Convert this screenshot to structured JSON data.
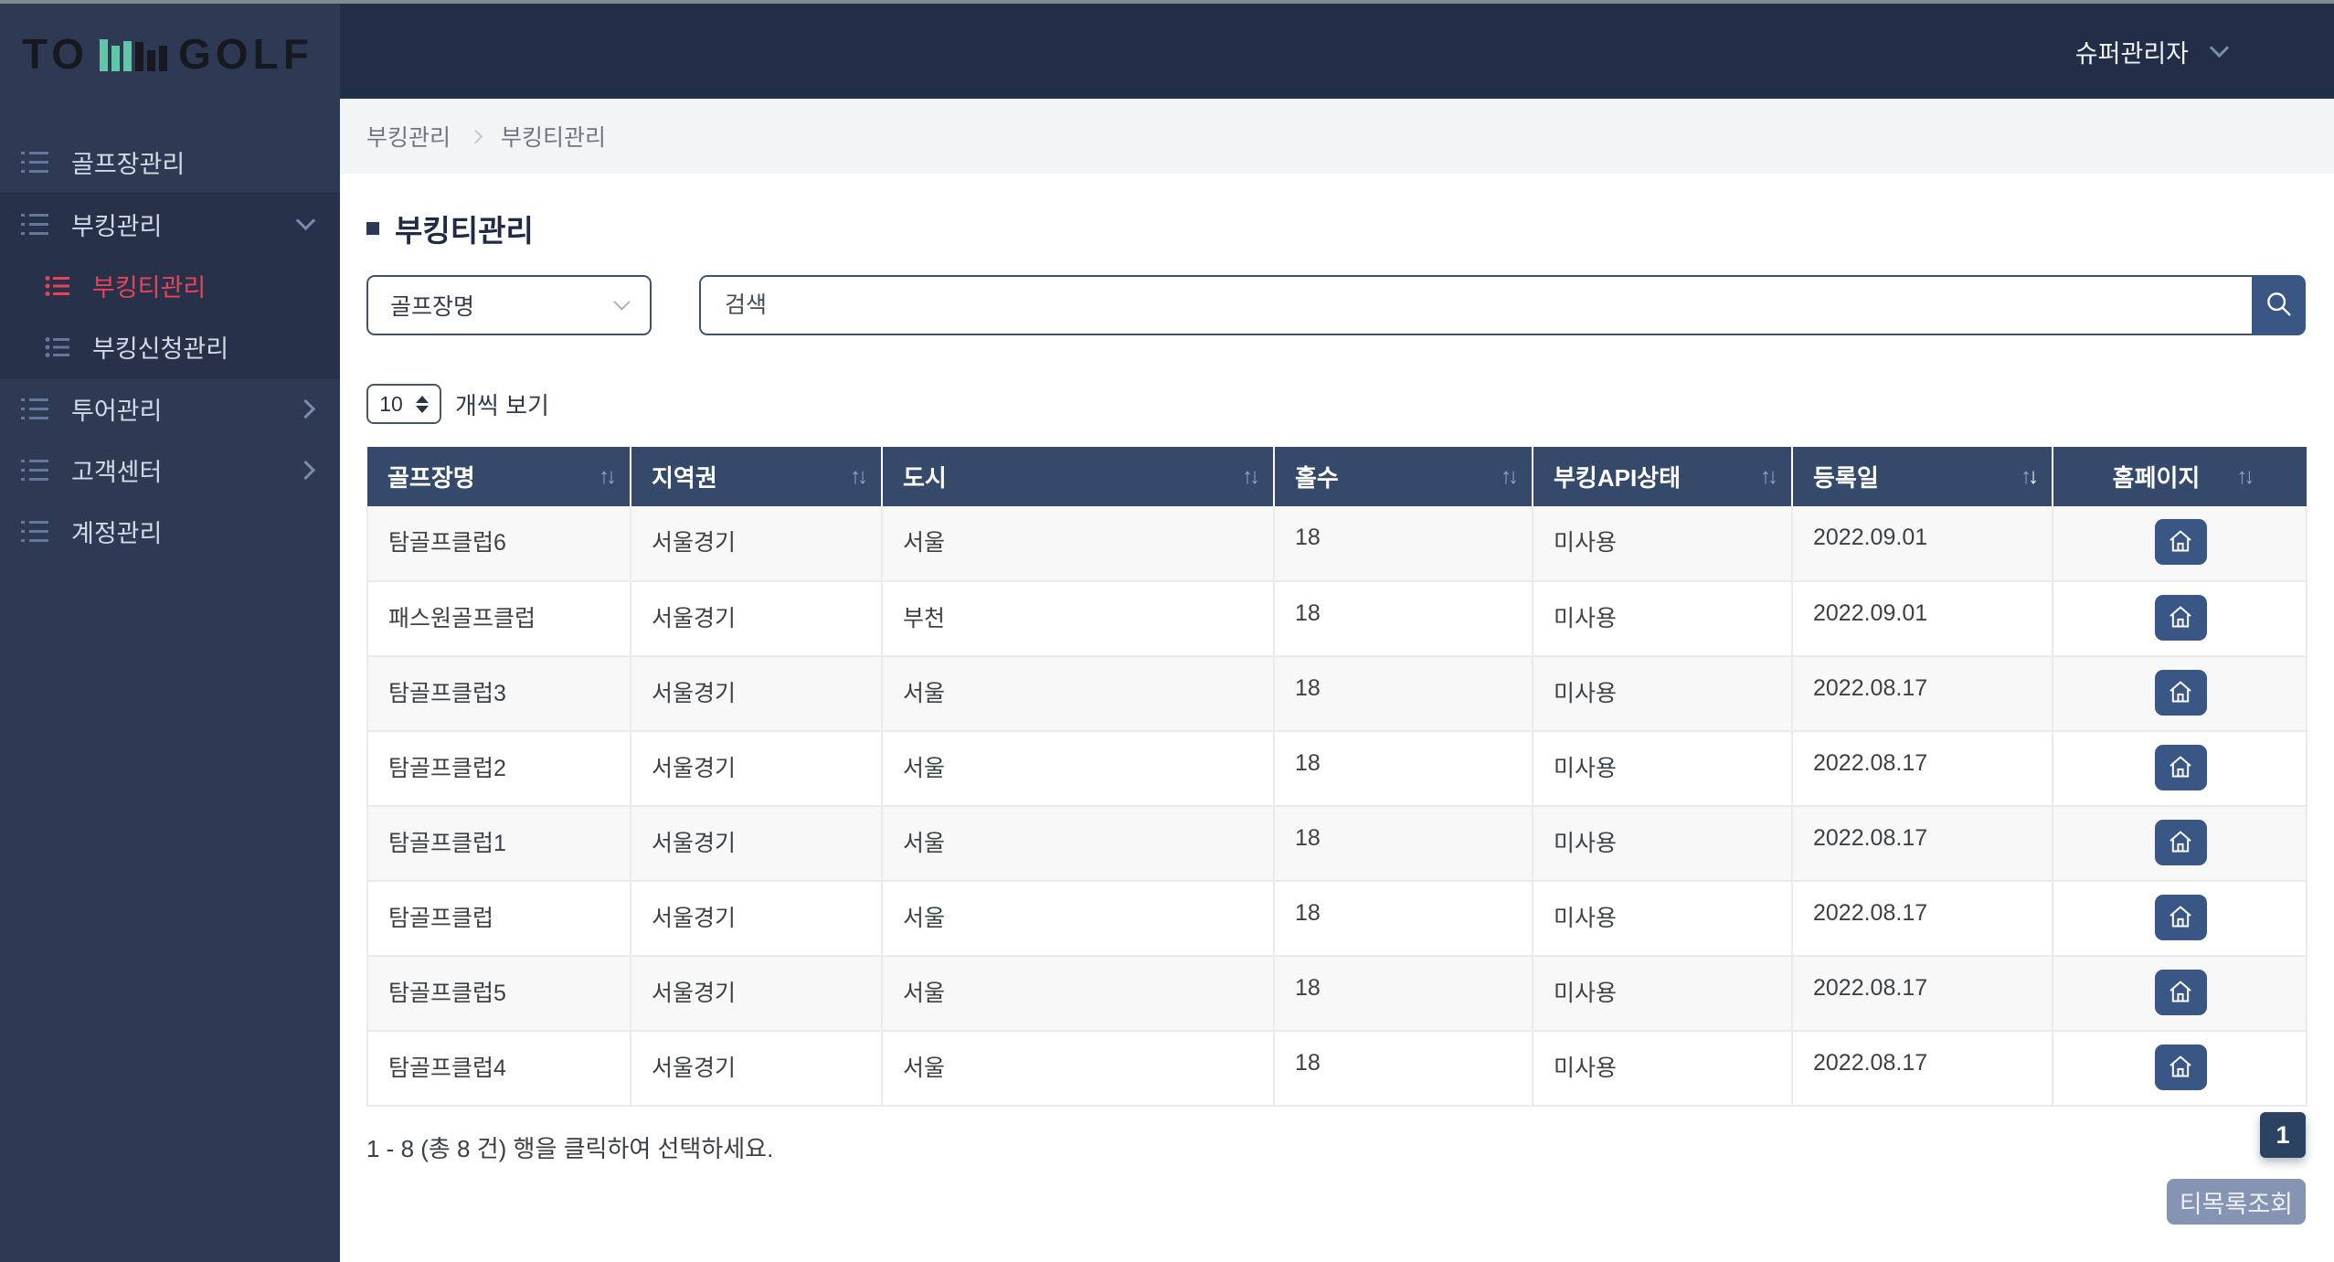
{
  "app": {
    "logo": {
      "text_left": "TO",
      "text_right": "GOLF"
    },
    "user_menu": {
      "label": "슈퍼관리자"
    }
  },
  "sidebar": {
    "items": [
      {
        "label": "골프장관리"
      },
      {
        "label": "부킹관리"
      },
      {
        "label": "부킹티관리"
      },
      {
        "label": "부킹신청관리"
      },
      {
        "label": "투어관리"
      },
      {
        "label": "고객센터"
      },
      {
        "label": "계정관리"
      }
    ]
  },
  "breadcrumb": {
    "items": [
      "부킹관리",
      "부킹티관리"
    ]
  },
  "page": {
    "title": "부킹티관리"
  },
  "filters": {
    "category_selected": "골프장명",
    "search_placeholder": "검색"
  },
  "pagesize": {
    "value": "10",
    "label": "개씩 보기"
  },
  "table": {
    "columns": [
      {
        "label": "골프장명",
        "sort": "none"
      },
      {
        "label": "지역권",
        "sort": "none"
      },
      {
        "label": "도시",
        "sort": "none"
      },
      {
        "label": "홀수",
        "sort": "none"
      },
      {
        "label": "부킹API상태",
        "sort": "none"
      },
      {
        "label": "등록일",
        "sort": "desc"
      },
      {
        "label": "홈페이지",
        "sort": "none"
      }
    ],
    "rows": [
      {
        "name": "탐골프클럽6",
        "region": "서울경기",
        "city": "서울",
        "holes": "18",
        "api_status": "미사용",
        "reg_date": "2022.09.01"
      },
      {
        "name": "패스원골프클럽",
        "region": "서울경기",
        "city": "부천",
        "holes": "18",
        "api_status": "미사용",
        "reg_date": "2022.09.01"
      },
      {
        "name": "탐골프클럽3",
        "region": "서울경기",
        "city": "서울",
        "holes": "18",
        "api_status": "미사용",
        "reg_date": "2022.08.17"
      },
      {
        "name": "탐골프클럽2",
        "region": "서울경기",
        "city": "서울",
        "holes": "18",
        "api_status": "미사용",
        "reg_date": "2022.08.17"
      },
      {
        "name": "탐골프클럽1",
        "region": "서울경기",
        "city": "서울",
        "holes": "18",
        "api_status": "미사용",
        "reg_date": "2022.08.17"
      },
      {
        "name": "탐골프클럽",
        "region": "서울경기",
        "city": "서울",
        "holes": "18",
        "api_status": "미사용",
        "reg_date": "2022.08.17"
      },
      {
        "name": "탐골프클럽5",
        "region": "서울경기",
        "city": "서울",
        "holes": "18",
        "api_status": "미사용",
        "reg_date": "2022.08.17"
      },
      {
        "name": "탐골프클럽4",
        "region": "서울경기",
        "city": "서울",
        "holes": "18",
        "api_status": "미사용",
        "reg_date": "2022.08.17"
      }
    ]
  },
  "footer": {
    "summary": "1 - 8 (총 8 건) 행을 클릭하여 선택하세요.",
    "page_number": "1",
    "action_label": "티목록조회"
  },
  "colors": {
    "accent_red": "#e94358",
    "navy_button": "#3a5684",
    "header_navy": "#222d47",
    "sidebar_navy": "#2e3a54",
    "table_header_navy": "#35496b",
    "logo_teal": "#5fc7a8",
    "disabled_button": "#8494b2"
  }
}
